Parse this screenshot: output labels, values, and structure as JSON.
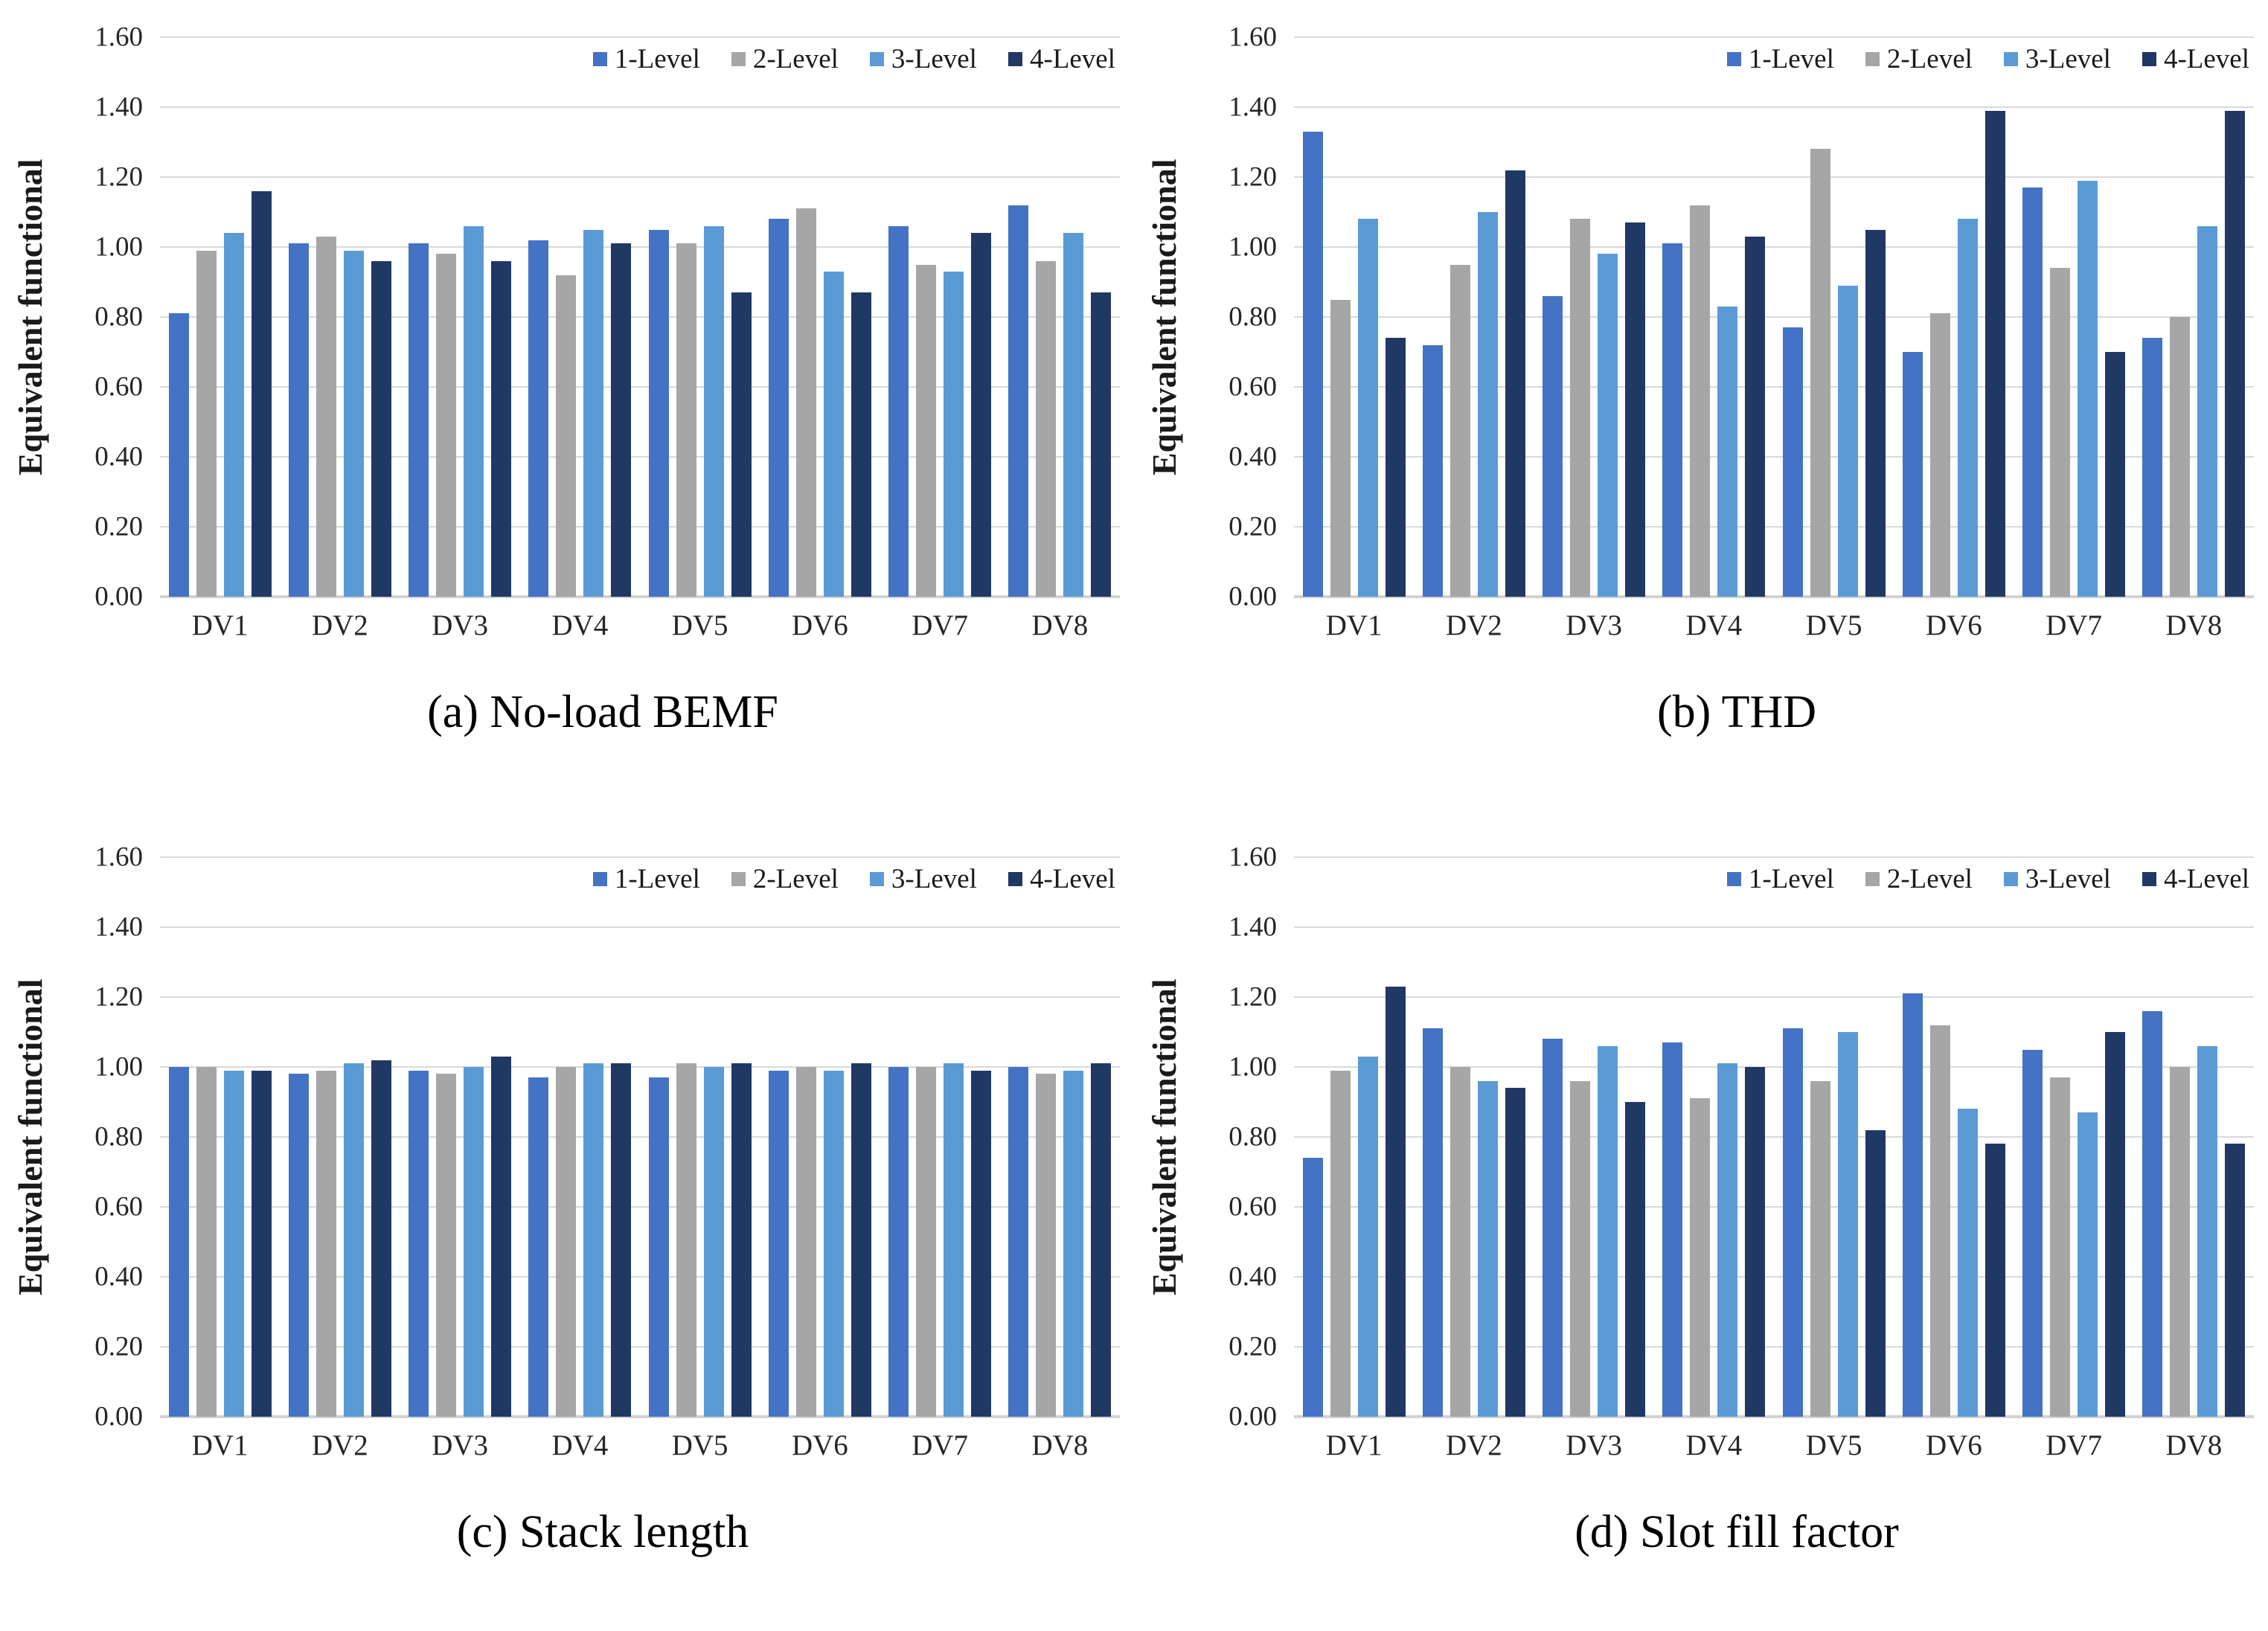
{
  "labels": {
    "ylabel": "Equivalent functional"
  },
  "legend": [
    "1-Level",
    "2-Level",
    "3-Level",
    "4-Level"
  ],
  "colors": {
    "1-Level": "#4472c4",
    "2-Level": "#a6a6a6",
    "3-Level": "#5b9bd5",
    "4-Level": "#203864",
    "gridline": "#d9d9d9"
  },
  "axis": {
    "ymin": 0.0,
    "ymax": 1.6,
    "ystep": 0.2,
    "yticks": [
      "0.00",
      "0.20",
      "0.40",
      "0.60",
      "0.80",
      "1.00",
      "1.20",
      "1.40",
      "1.60"
    ]
  },
  "chart_data": [
    {
      "type": "bar",
      "caption": "(a) No-load BEMF",
      "ylabel": "Equivalent functional",
      "ylim": [
        0.0,
        1.6
      ],
      "grid": true,
      "legend_position": "top-right",
      "categories": [
        "DV1",
        "DV2",
        "DV3",
        "DV4",
        "DV5",
        "DV6",
        "DV7",
        "DV8"
      ],
      "series": [
        {
          "name": "1-Level",
          "values": [
            0.81,
            1.01,
            1.01,
            1.02,
            1.05,
            1.08,
            1.06,
            1.12
          ]
        },
        {
          "name": "2-Level",
          "values": [
            0.99,
            1.03,
            0.98,
            0.92,
            1.01,
            1.11,
            0.95,
            0.96
          ]
        },
        {
          "name": "3-Level",
          "values": [
            1.04,
            0.99,
            1.06,
            1.05,
            1.06,
            0.93,
            0.93,
            1.04
          ]
        },
        {
          "name": "4-Level",
          "values": [
            1.16,
            0.96,
            0.96,
            1.01,
            0.87,
            0.87,
            1.04,
            0.87
          ]
        }
      ]
    },
    {
      "type": "bar",
      "caption": "(b) THD",
      "ylabel": "Equivalent functional",
      "ylim": [
        0.0,
        1.6
      ],
      "grid": true,
      "legend_position": "top-right",
      "categories": [
        "DV1",
        "DV2",
        "DV3",
        "DV4",
        "DV5",
        "DV6",
        "DV7",
        "DV8"
      ],
      "series": [
        {
          "name": "1-Level",
          "values": [
            1.33,
            0.72,
            0.86,
            1.01,
            0.77,
            0.7,
            1.17,
            0.74
          ]
        },
        {
          "name": "2-Level",
          "values": [
            0.85,
            0.95,
            1.08,
            1.12,
            1.28,
            0.81,
            0.94,
            0.8
          ]
        },
        {
          "name": "3-Level",
          "values": [
            1.08,
            1.1,
            0.98,
            0.83,
            0.89,
            1.08,
            1.19,
            1.06
          ]
        },
        {
          "name": "4-Level",
          "values": [
            0.74,
            1.22,
            1.07,
            1.03,
            1.05,
            1.39,
            0.7,
            1.39
          ]
        }
      ]
    },
    {
      "type": "bar",
      "caption": "(c) Stack length",
      "ylabel": "Equivalent functional",
      "ylim": [
        0.0,
        1.6
      ],
      "grid": true,
      "legend_position": "top-right",
      "categories": [
        "DV1",
        "DV2",
        "DV3",
        "DV4",
        "DV5",
        "DV6",
        "DV7",
        "DV8"
      ],
      "series": [
        {
          "name": "1-Level",
          "values": [
            1.0,
            0.98,
            0.99,
            0.97,
            0.97,
            0.99,
            1.0,
            1.0
          ]
        },
        {
          "name": "2-Level",
          "values": [
            1.0,
            0.99,
            0.98,
            1.0,
            1.01,
            1.0,
            1.0,
            0.98
          ]
        },
        {
          "name": "3-Level",
          "values": [
            0.99,
            1.01,
            1.0,
            1.01,
            1.0,
            0.99,
            1.01,
            0.99
          ]
        },
        {
          "name": "4-Level",
          "values": [
            0.99,
            1.02,
            1.03,
            1.01,
            1.01,
            1.01,
            0.99,
            1.01
          ]
        }
      ]
    },
    {
      "type": "bar",
      "caption": "(d) Slot fill factor",
      "ylabel": "Equivalent functional",
      "ylim": [
        0.0,
        1.6
      ],
      "grid": true,
      "legend_position": "top-right",
      "categories": [
        "DV1",
        "DV2",
        "DV3",
        "DV4",
        "DV5",
        "DV6",
        "DV7",
        "DV8"
      ],
      "series": [
        {
          "name": "1-Level",
          "values": [
            0.74,
            1.11,
            1.08,
            1.07,
            1.11,
            1.21,
            1.05,
            1.16
          ]
        },
        {
          "name": "2-Level",
          "values": [
            0.99,
            1.0,
            0.96,
            0.91,
            0.96,
            1.12,
            0.97,
            1.0
          ]
        },
        {
          "name": "3-Level",
          "values": [
            1.03,
            0.96,
            1.06,
            1.01,
            1.1,
            0.88,
            0.87,
            1.06
          ]
        },
        {
          "name": "4-Level",
          "values": [
            1.23,
            0.94,
            0.9,
            1.0,
            0.82,
            0.78,
            1.1,
            0.78
          ]
        }
      ]
    }
  ]
}
